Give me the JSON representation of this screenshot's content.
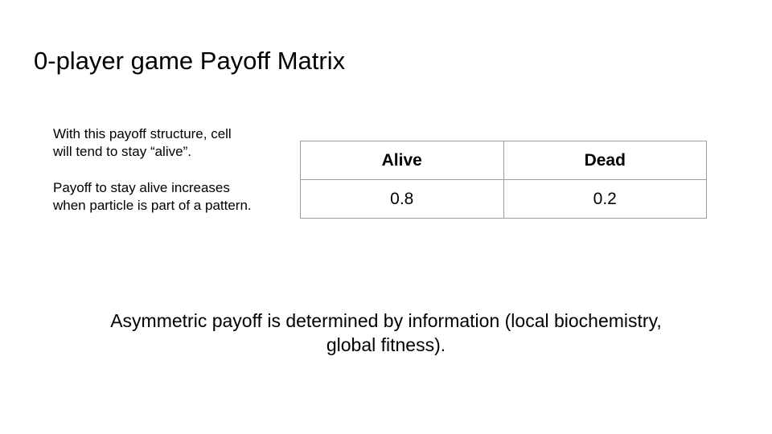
{
  "slide": {
    "title": "0-player game Payoff Matrix",
    "side_text": {
      "line1": "With this payoff structure, cell",
      "line2": "will tend to stay “alive”.",
      "line3": "Payoff to stay alive increases",
      "line4": "when particle is part of a pattern."
    },
    "table": {
      "headers": [
        "Alive",
        "Dead"
      ],
      "row": [
        "0.8",
        "0.2"
      ]
    },
    "footer": {
      "line1": "Asymmetric payoff is determined by information (local biochemistry,",
      "line2": "global fitness)."
    }
  }
}
